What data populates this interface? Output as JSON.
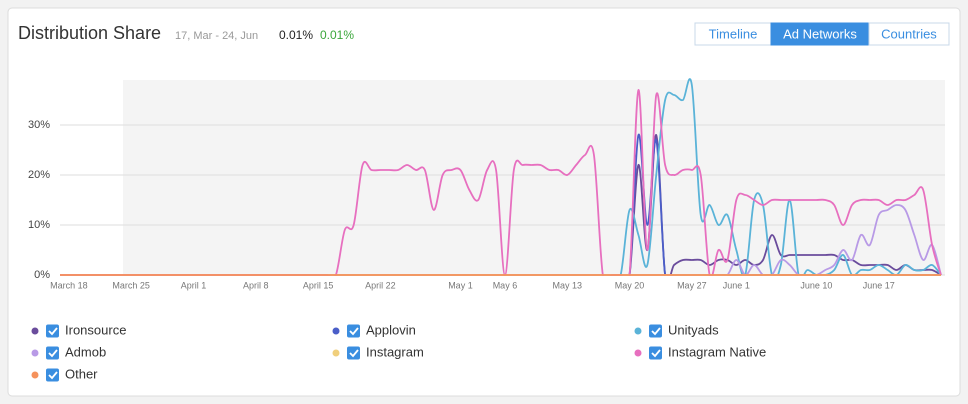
{
  "header": {
    "title": "Distribution Share",
    "date_range": "17, Mar - 24, Jun",
    "value": "0.01%",
    "change": "0.01%",
    "tabs": [
      "Timeline",
      "Ad Networks",
      "Countries"
    ],
    "active_tab": "Ad Networks"
  },
  "chart_data": {
    "type": "line",
    "ylim": [
      0,
      39
    ],
    "yticks": [
      {
        "value": 0,
        "label": "0%"
      },
      {
        "value": 10,
        "label": "10%"
      },
      {
        "value": 20,
        "label": "20%"
      },
      {
        "value": 30,
        "label": "30%"
      }
    ],
    "grid": true,
    "categories": [
      null,
      "March 18",
      null,
      null,
      null,
      null,
      null,
      null,
      "March 25",
      null,
      null,
      null,
      null,
      null,
      null,
      "April 1",
      null,
      null,
      null,
      null,
      null,
      null,
      "April 8",
      null,
      null,
      null,
      null,
      null,
      null,
      "April 15",
      null,
      null,
      null,
      null,
      null,
      null,
      "April 22",
      null,
      null,
      null,
      null,
      null,
      null,
      null,
      null,
      "May 1",
      null,
      null,
      null,
      null,
      "May 6",
      null,
      null,
      null,
      null,
      null,
      null,
      "May 13",
      null,
      null,
      null,
      null,
      null,
      null,
      "May 20",
      null,
      null,
      null,
      null,
      null,
      null,
      "May 27",
      null,
      null,
      null,
      null,
      "June 1",
      null,
      null,
      null,
      null,
      null,
      null,
      null,
      null,
      "June 10",
      null,
      null,
      null,
      null,
      null,
      null,
      "June 17",
      null,
      null,
      null,
      null,
      null,
      null,
      null
    ],
    "series": [
      {
        "name": "Ironsource",
        "color": "#6a4c9c",
        "values": [
          0,
          0,
          0,
          0,
          0,
          0,
          0,
          0,
          0,
          0,
          0,
          0,
          0,
          0,
          0,
          0,
          0,
          0,
          0,
          0,
          0,
          0,
          0,
          0,
          0,
          0,
          0,
          0,
          0,
          0,
          0,
          0,
          0,
          0,
          0,
          0,
          0,
          0,
          0,
          0,
          0,
          0,
          0,
          0,
          0,
          0,
          0,
          0,
          0,
          0,
          0,
          0,
          0,
          0,
          0,
          0,
          0,
          0,
          0,
          0,
          0,
          0,
          0,
          0,
          0,
          22,
          5,
          28,
          0,
          2,
          3,
          3,
          3,
          2,
          3,
          3,
          2,
          3,
          2,
          3,
          8,
          4,
          4,
          4,
          4,
          4,
          4,
          4,
          3,
          3,
          2,
          2,
          2,
          2,
          1,
          2,
          1,
          1,
          1,
          0
        ]
      },
      {
        "name": "Applovin",
        "color": "#4a5ec8",
        "values": [
          0,
          0,
          0,
          0,
          0,
          0,
          0,
          0,
          0,
          0,
          0,
          0,
          0,
          0,
          0,
          0,
          0,
          0,
          0,
          0,
          0,
          0,
          0,
          0,
          0,
          0,
          0,
          0,
          0,
          0,
          0,
          0,
          0,
          0,
          0,
          0,
          0,
          0,
          0,
          0,
          0,
          0,
          0,
          0,
          0,
          0,
          0,
          0,
          0,
          0,
          0,
          0,
          0,
          0,
          0,
          0,
          0,
          0,
          0,
          0,
          0,
          0,
          0,
          0,
          0,
          28,
          10,
          27,
          0,
          0,
          0,
          0,
          0,
          0,
          0,
          0,
          0,
          0,
          0,
          0,
          0,
          0,
          0,
          0,
          0,
          0,
          0,
          0,
          0,
          0,
          0,
          0,
          0,
          0,
          0,
          0,
          0,
          0,
          0,
          0
        ]
      },
      {
        "name": "Unityads",
        "color": "#5ab3d8",
        "values": [
          0,
          0,
          0,
          0,
          0,
          0,
          0,
          0,
          0,
          0,
          0,
          0,
          0,
          0,
          0,
          0,
          0,
          0,
          0,
          0,
          0,
          0,
          0,
          0,
          0,
          0,
          0,
          0,
          0,
          0,
          0,
          0,
          0,
          0,
          0,
          0,
          0,
          0,
          0,
          0,
          0,
          0,
          0,
          0,
          0,
          0,
          0,
          0,
          0,
          0,
          0,
          0,
          0,
          0,
          0,
          0,
          0,
          0,
          0,
          0,
          0,
          0,
          0,
          0,
          13,
          8,
          2,
          20,
          35,
          36,
          35,
          38,
          12,
          14,
          10,
          12,
          5,
          0,
          15,
          14,
          0,
          2,
          15,
          0,
          1,
          0,
          0,
          1,
          4,
          0,
          1,
          1,
          2,
          1,
          0,
          2,
          1,
          1,
          2,
          0
        ]
      },
      {
        "name": "Admob",
        "color": "#b89ae6",
        "values": [
          0,
          0,
          0,
          0,
          0,
          0,
          0,
          0,
          0,
          0,
          0,
          0,
          0,
          0,
          0,
          0,
          0,
          0,
          0,
          0,
          0,
          0,
          0,
          0,
          0,
          0,
          0,
          0,
          0,
          0,
          0,
          0,
          0,
          0,
          0,
          0,
          0,
          0,
          0,
          0,
          0,
          0,
          0,
          0,
          0,
          0,
          0,
          0,
          0,
          0,
          0,
          0,
          0,
          0,
          0,
          0,
          0,
          0,
          0,
          0,
          0,
          0,
          0,
          0,
          0,
          0,
          0,
          0,
          0,
          0,
          0,
          0,
          0,
          0,
          0,
          0,
          3,
          0,
          2,
          0,
          0,
          3,
          2,
          0,
          0,
          0,
          1,
          2,
          5,
          3,
          8,
          6,
          12,
          13,
          14,
          13,
          8,
          3,
          6,
          0
        ]
      },
      {
        "name": "Instagram",
        "color": "#f0cf7c",
        "values": [
          0,
          0,
          0,
          0,
          0,
          0,
          0,
          0,
          0,
          0,
          0,
          0,
          0,
          0,
          0,
          0,
          0,
          0,
          0,
          0,
          0,
          0,
          0,
          0,
          0,
          0,
          0,
          0,
          0,
          0,
          0,
          0,
          0,
          0,
          0,
          0,
          0,
          0,
          0,
          0,
          0,
          0,
          0,
          0,
          0,
          0,
          0,
          0,
          0,
          0,
          0,
          0,
          0,
          0,
          0,
          0,
          0,
          0,
          0,
          0,
          0,
          0,
          0,
          0,
          0,
          0,
          0,
          0,
          0,
          0,
          0,
          0,
          0,
          0,
          0,
          0,
          0,
          0,
          0,
          0,
          0,
          0,
          0,
          0,
          0,
          0,
          0,
          0,
          0,
          0,
          0,
          0,
          0,
          0,
          0,
          0,
          0,
          0,
          0,
          0
        ]
      },
      {
        "name": "Instagram Native",
        "color": "#e76fbf",
        "values": [
          0,
          0,
          0,
          0,
          0,
          0,
          0,
          0,
          0,
          0,
          0,
          0,
          0,
          0,
          0,
          0,
          0,
          0,
          0,
          0,
          0,
          0,
          0,
          0,
          0,
          0,
          0,
          0,
          0,
          0,
          0,
          0,
          9,
          10,
          22,
          21,
          21,
          21,
          21,
          22,
          21,
          21,
          13,
          20,
          21,
          21,
          17,
          15,
          21,
          21,
          0,
          21,
          22,
          22,
          22,
          21,
          21,
          20,
          22,
          24,
          24,
          0,
          0,
          0,
          0,
          37,
          5,
          36,
          22,
          20,
          21,
          21,
          20,
          0,
          5,
          3,
          15,
          16,
          15,
          14,
          15,
          15,
          15,
          15,
          15,
          15,
          15,
          14,
          10,
          14,
          15,
          15,
          15,
          14,
          15,
          15,
          16,
          17,
          6,
          0
        ]
      },
      {
        "name": "Other",
        "color": "#f5925c",
        "values": [
          0,
          0,
          0,
          0,
          0,
          0,
          0,
          0,
          0,
          0,
          0,
          0,
          0,
          0,
          0,
          0,
          0,
          0,
          0,
          0,
          0,
          0,
          0,
          0,
          0,
          0,
          0,
          0,
          0,
          0,
          0,
          0,
          0,
          0,
          0,
          0,
          0,
          0,
          0,
          0,
          0,
          0,
          0,
          0,
          0,
          0,
          0,
          0,
          0,
          0,
          0,
          0,
          0,
          0,
          0,
          0,
          0,
          0,
          0,
          0,
          0,
          0,
          0,
          0,
          0,
          0,
          0,
          0,
          0,
          0,
          0,
          0,
          0,
          0,
          0,
          0,
          0,
          0,
          0,
          0,
          0,
          0,
          0,
          0,
          0,
          0,
          0,
          0,
          0,
          0,
          0,
          0,
          0,
          0,
          0,
          0,
          0,
          0,
          0,
          0
        ]
      }
    ]
  }
}
